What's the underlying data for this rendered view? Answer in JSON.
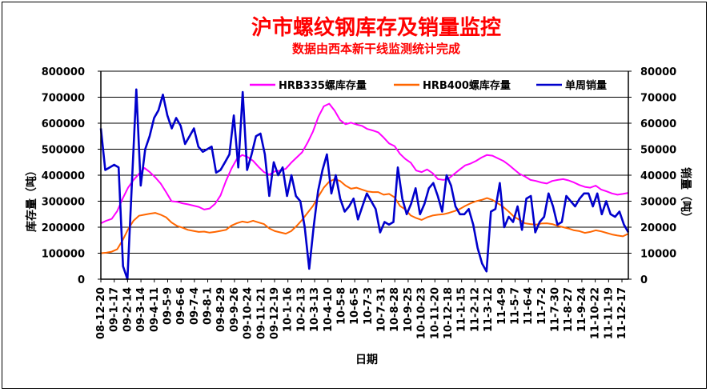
{
  "chart_data": {
    "type": "line",
    "title": "沪市螺纹钢库存及销量监控",
    "subtitle": "数据由西本新干线监测统计完成",
    "xlabel": "日期",
    "ylabel_left": "库存量（吨）",
    "ylabel_right": "销量（吨）",
    "y_left_lim": [
      0,
      800000
    ],
    "y_left_ticks": [
      "0",
      "100000",
      "200000",
      "300000",
      "400000",
      "500000",
      "600000",
      "700000",
      "800000"
    ],
    "y_right_lim": [
      0,
      80000
    ],
    "y_right_ticks": [
      "0",
      "10000",
      "20000",
      "30000",
      "40000",
      "50000",
      "60000",
      "70000",
      "80000"
    ],
    "grid": true,
    "legend": "top",
    "x_tick_labels": [
      "08-12-20",
      "09-1-17",
      "09-2-14",
      "09-3-14",
      "09-4-11",
      "09-5-9",
      "09-6-6",
      "09-7-4",
      "09-8-1",
      "09-8-29",
      "09-9-26",
      "09-10-24",
      "09-11-21",
      "09-12-19",
      "10-1-16",
      "10-2-13",
      "10-3-13",
      "10-4-10",
      "10-5-8",
      "10-6-5",
      "10-7-3",
      "10-7-31",
      "10-8-28",
      "10-9-25",
      "10-10-23",
      "10-11-20",
      "10-12-18",
      "11-1-15",
      "11-2-12",
      "11-3-12",
      "11-4-9",
      "11-5-7",
      "11-6-4",
      "11-7-2",
      "11-7-30",
      "11-8-27",
      "11-9-24",
      "11-10-22",
      "11-11-19",
      "11-12-17"
    ],
    "series": [
      {
        "name": "HRB335螺库存量",
        "color": "#ff00ff",
        "axis": "left",
        "values": [
          215000,
          225000,
          232000,
          262000,
          310000,
          352000,
          382000,
          405000,
          428000,
          412000,
          392000,
          368000,
          335000,
          300000,
          298000,
          292000,
          288000,
          283000,
          278000,
          268000,
          272000,
          290000,
          322000,
          378000,
          425000,
          462000,
          478000,
          470000,
          455000,
          432000,
          412000,
          402000,
          415000,
          418000,
          425000,
          448000,
          468000,
          488000,
          525000,
          568000,
          625000,
          665000,
          675000,
          648000,
          612000,
          596000,
          602000,
          595000,
          590000,
          578000,
          572000,
          565000,
          545000,
          522000,
          512000,
          482000,
          462000,
          448000,
          418000,
          412000,
          422000,
          408000,
          385000,
          382000,
          388000,
          405000,
          422000,
          438000,
          445000,
          455000,
          468000,
          478000,
          475000,
          465000,
          455000,
          440000,
          422000,
          405000,
          395000,
          382000,
          378000,
          372000,
          368000,
          378000,
          382000,
          385000,
          380000,
          372000,
          362000,
          355000,
          352000,
          360000,
          345000,
          338000,
          330000,
          325000,
          328000,
          332000
        ]
      },
      {
        "name": "HRB400螺库存量",
        "color": "#ff6600",
        "axis": "left",
        "values": [
          100000,
          102000,
          106000,
          115000,
          150000,
          192000,
          225000,
          244000,
          248000,
          252000,
          255000,
          248000,
          238000,
          218000,
          205000,
          198000,
          190000,
          186000,
          182000,
          183000,
          179000,
          182000,
          186000,
          190000,
          206000,
          215000,
          222000,
          218000,
          225000,
          218000,
          212000,
          195000,
          185000,
          180000,
          175000,
          185000,
          205000,
          228000,
          255000,
          282000,
          318000,
          352000,
          375000,
          385000,
          378000,
          360000,
          348000,
          352000,
          345000,
          338000,
          335000,
          335000,
          325000,
          328000,
          315000,
          282000,
          268000,
          245000,
          235000,
          228000,
          238000,
          245000,
          248000,
          250000,
          255000,
          262000,
          270000,
          282000,
          292000,
          300000,
          305000,
          312000,
          305000,
          292000,
          278000,
          260000,
          240000,
          228000,
          215000,
          212000,
          210000,
          214000,
          215000,
          212000,
          205000,
          200000,
          195000,
          188000,
          185000,
          178000,
          182000,
          188000,
          184000,
          178000,
          172000,
          168000,
          165000,
          175000
        ]
      },
      {
        "name": "单周销量",
        "color": "#0000cc",
        "axis": "right",
        "values": [
          58000,
          42000,
          43000,
          44000,
          43000,
          5000,
          0,
          37000,
          73000,
          36000,
          50000,
          55000,
          62000,
          65000,
          71000,
          63000,
          58000,
          62000,
          59000,
          52000,
          55000,
          58000,
          51000,
          49000,
          50000,
          51000,
          41000,
          42000,
          45000,
          48000,
          63000,
          43000,
          72000,
          42000,
          48000,
          55000,
          56000,
          48000,
          32000,
          45000,
          40000,
          43000,
          32000,
          40000,
          32000,
          30000,
          20000,
          4000,
          20000,
          34000,
          42000,
          48000,
          33000,
          40000,
          31000,
          26000,
          28000,
          31000,
          23000,
          28000,
          33000,
          30000,
          27000,
          18000,
          22000,
          21000,
          22000,
          43000,
          31000,
          25000,
          29000,
          35000,
          25000,
          29000,
          35000,
          37000,
          32000,
          26000,
          40000,
          36000,
          28000,
          25000,
          25000,
          27000,
          21000,
          12000,
          6000,
          3000,
          26000,
          27000,
          37000,
          20000,
          24000,
          22000,
          28000,
          19000,
          31000,
          32000,
          18000,
          22000,
          24000,
          33000,
          28000,
          21000,
          22000,
          32000,
          30000,
          28000,
          31000,
          33000,
          33000,
          28000,
          33000,
          25000,
          30000,
          25000,
          24000,
          26000,
          21000,
          18000
        ]
      }
    ]
  }
}
